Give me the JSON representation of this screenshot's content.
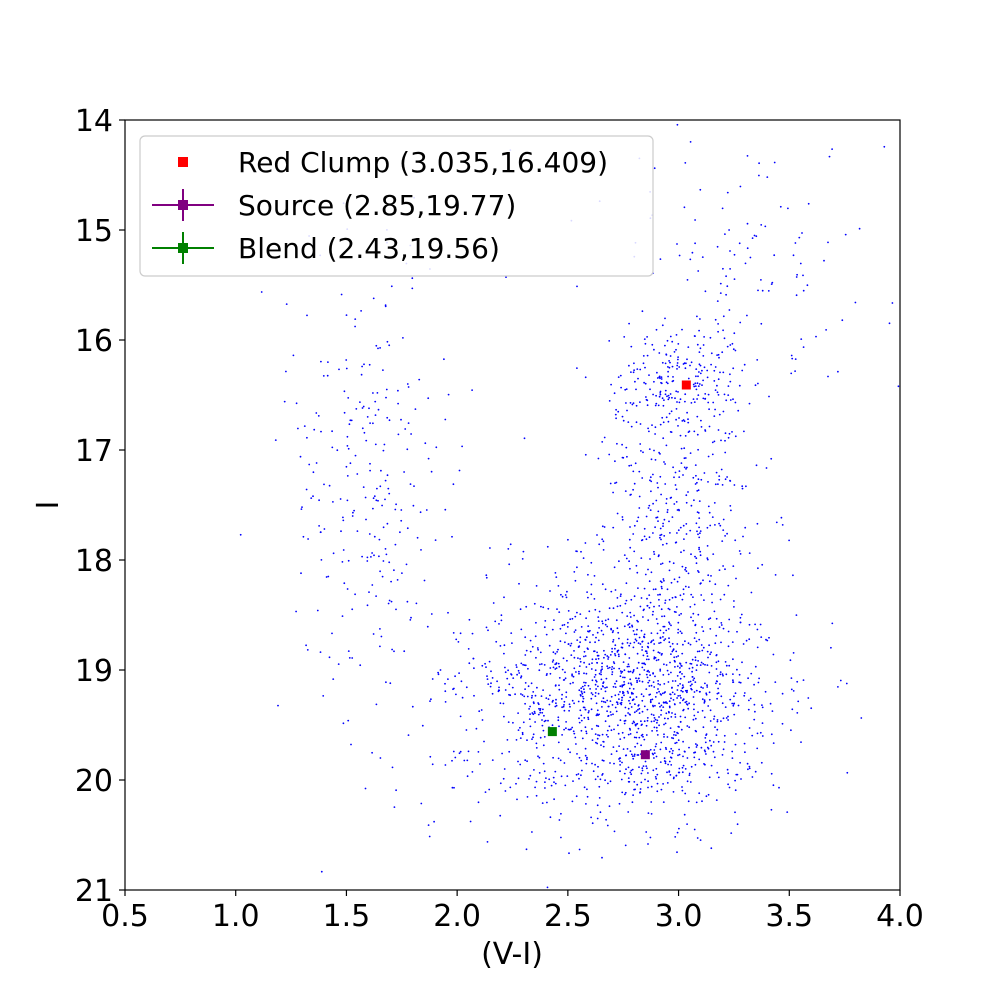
{
  "chart_data": {
    "type": "scatter",
    "xlabel": "(V-I)",
    "ylabel": "I",
    "xlim": [
      0.5,
      4.0
    ],
    "ylim": [
      14,
      21
    ],
    "y_inverted": true,
    "grid": false,
    "legend_position": "top-left",
    "xticks": [
      "0.5",
      "1.0",
      "1.5",
      "2.0",
      "2.5",
      "3.0",
      "3.5",
      "4.0"
    ],
    "yticks": [
      "14",
      "15",
      "16",
      "17",
      "18",
      "19",
      "20",
      "21"
    ],
    "background_stars": {
      "color": "#0000ff",
      "regions": [
        {
          "center": [
            2.8,
            19.2
          ],
          "spread": [
            0.32,
            0.55
          ],
          "weight": 0.6
        },
        {
          "center": [
            3.0,
            16.4
          ],
          "spread": [
            0.14,
            0.25
          ],
          "weight": 0.09
        },
        {
          "center": [
            3.0,
            17.5
          ],
          "spread": [
            0.18,
            0.55
          ],
          "weight": 0.12
        },
        {
          "center": [
            1.6,
            17.3
          ],
          "spread": [
            0.18,
            1.0
          ],
          "weight": 0.1
        },
        {
          "center": [
            3.3,
            15.3
          ],
          "spread": [
            0.35,
            0.6
          ],
          "weight": 0.05
        },
        {
          "center": [
            2.2,
            19.6
          ],
          "spread": [
            0.4,
            0.7
          ],
          "weight": 0.04
        }
      ]
    },
    "series": [
      {
        "name": "Red Clump (3.035,16.409)",
        "x": 3.035,
        "y": 16.409,
        "color": "#ff0000",
        "marker": "square",
        "errorbars": false
      },
      {
        "name": "Source (2.85,19.77)",
        "x": 2.85,
        "y": 19.77,
        "color": "#800080",
        "marker": "square",
        "errorbars": true
      },
      {
        "name": "Blend (2.43,19.56)",
        "x": 2.43,
        "y": 19.56,
        "color": "#008000",
        "marker": "square",
        "errorbars": true
      }
    ]
  }
}
